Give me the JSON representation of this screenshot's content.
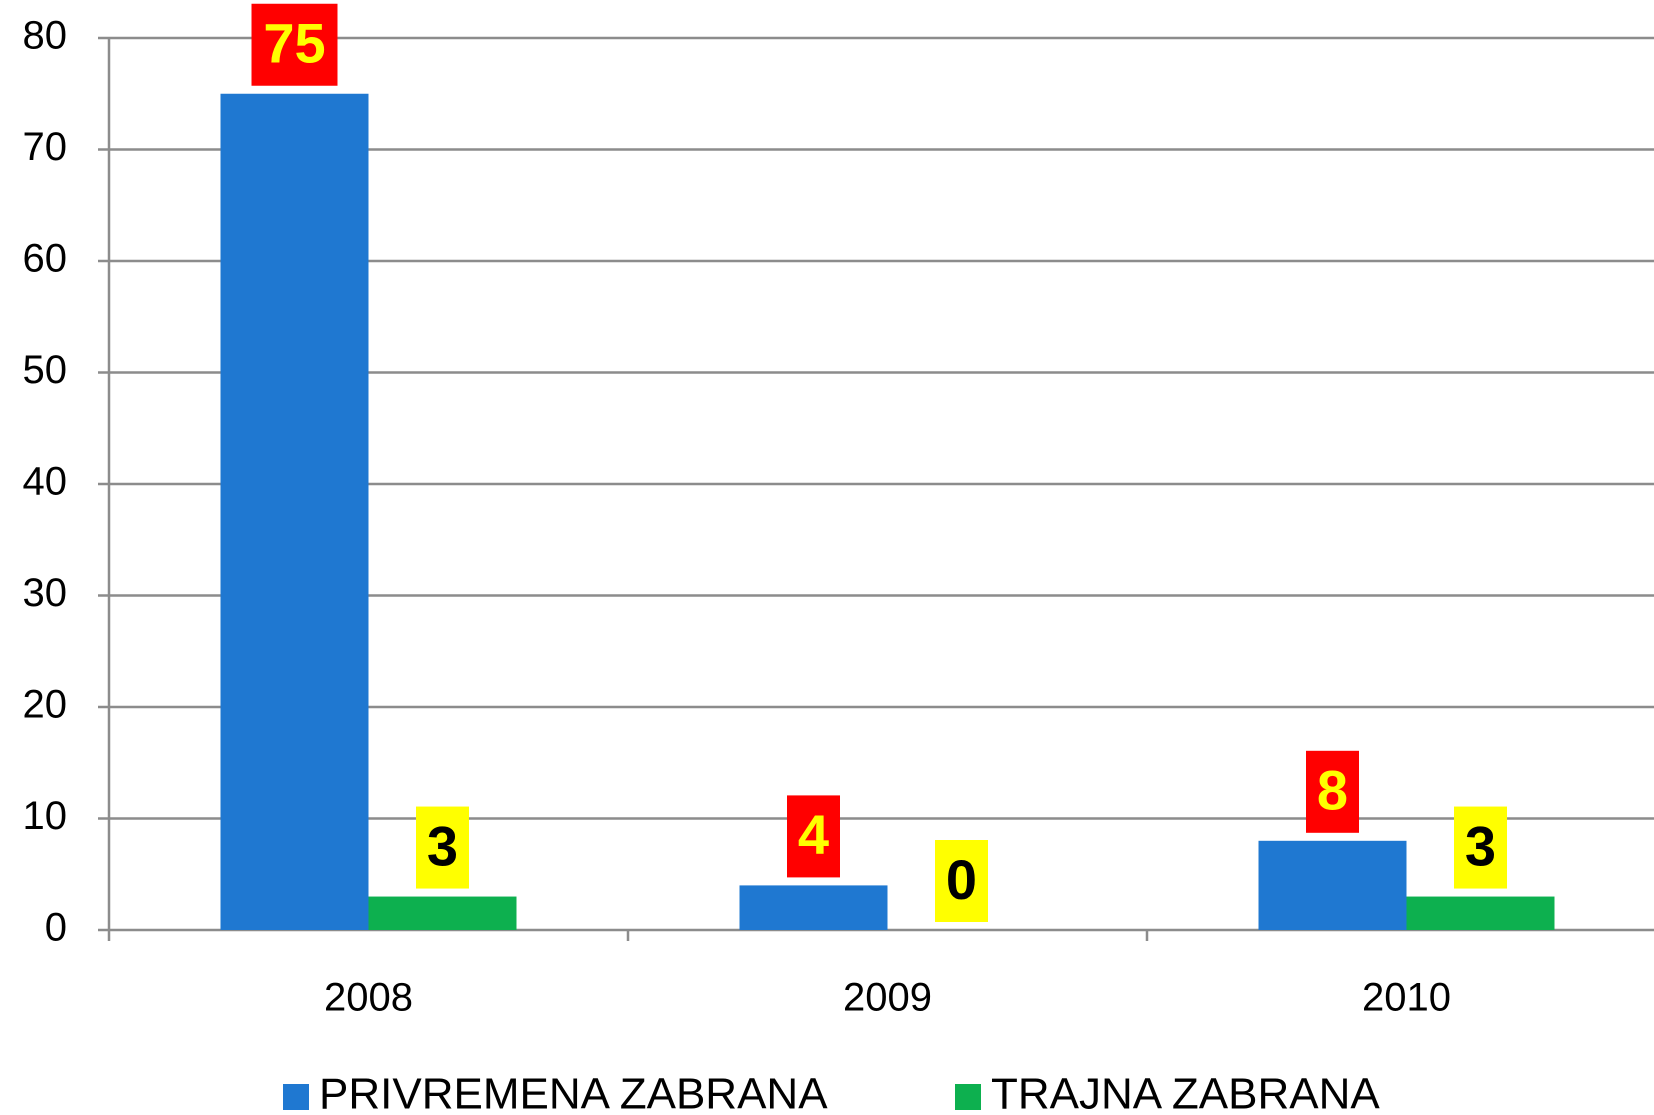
{
  "chart_data": {
    "type": "bar",
    "categories": [
      "2008",
      "2009",
      "2010"
    ],
    "series": [
      {
        "name": "PRIVREMENA ZABRANA",
        "color": "#1f78d1",
        "values": [
          75,
          4,
          8
        ]
      },
      {
        "name": "TRAJNA ZABRANA",
        "color": "#0db04f",
        "values": [
          3,
          0,
          3
        ]
      }
    ],
    "ylim": [
      0,
      80
    ],
    "yticks": [
      0,
      10,
      20,
      30,
      40,
      50,
      60,
      70,
      80
    ],
    "grid": true,
    "legend": "bottom"
  }
}
